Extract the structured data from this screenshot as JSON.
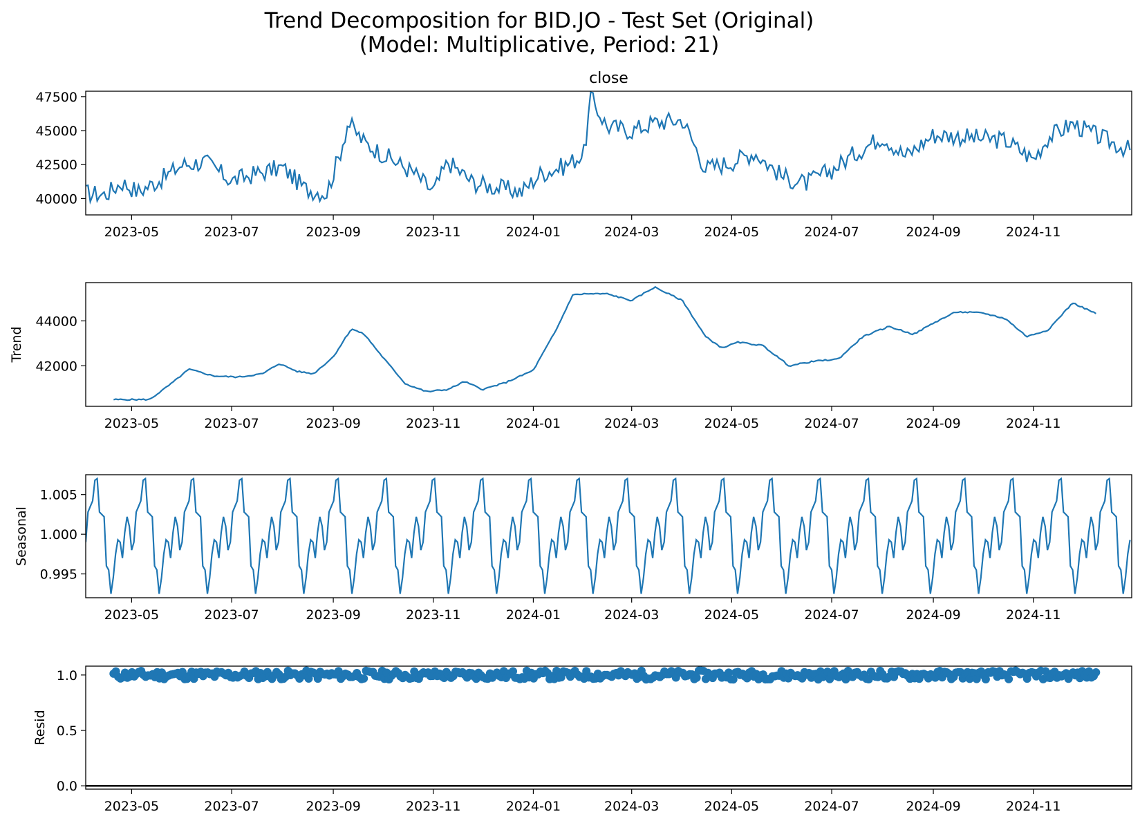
{
  "figure": {
    "title_line1": "Trend Decomposition for BID.JO - Test Set (Original)",
    "title_line2": "(Model: Multiplicative, Period: 21)"
  },
  "colors": {
    "series": "#1f77b4",
    "axis": "#000000",
    "zero_line": "#000000"
  },
  "chart_data": [
    {
      "type": "line",
      "title": "close",
      "ylabel": "",
      "xlim": [
        "2023-04-03",
        "2024-12-31"
      ],
      "ylim": [
        38800,
        47900
      ],
      "yticks": [
        40000,
        42500,
        45000,
        47500
      ],
      "ytick_labels": [
        "40000",
        "42500",
        "45000",
        "47500"
      ],
      "xticks": [
        "2023-05-01",
        "2023-07-01",
        "2023-09-01",
        "2023-11-01",
        "2024-01-01",
        "2024-03-01",
        "2024-05-01",
        "2024-07-01",
        "2024-09-01",
        "2024-11-01"
      ],
      "xtick_labels": [
        "2023-05",
        "2023-07",
        "2023-09",
        "2023-11",
        "2024-01",
        "2024-03",
        "2024-05",
        "2024-07",
        "2024-09",
        "2024-11"
      ],
      "grid": false,
      "series": [
        {
          "x": [
            "2023-04-03",
            "2023-04-15",
            "2023-04-25",
            "2023-05-05",
            "2023-05-20",
            "2023-06-01",
            "2023-06-15",
            "2023-07-01",
            "2023-07-15",
            "2023-08-01",
            "2023-08-15",
            "2023-08-28",
            "2023-09-05",
            "2023-09-10",
            "2023-09-20",
            "2023-10-05",
            "2023-10-20",
            "2023-11-01",
            "2023-11-10",
            "2023-11-25",
            "2023-12-10",
            "2023-12-25",
            "2024-01-05",
            "2024-01-20",
            "2024-02-01",
            "2024-02-05",
            "2024-02-15",
            "2024-03-01",
            "2024-03-15",
            "2024-04-01",
            "2024-04-15",
            "2024-05-01",
            "2024-05-15",
            "2024-06-01",
            "2024-06-15",
            "2024-07-01",
            "2024-07-15",
            "2024-08-01",
            "2024-08-15",
            "2024-09-01",
            "2024-09-15",
            "2024-10-01",
            "2024-10-15",
            "2024-11-01",
            "2024-11-10",
            "2024-11-25",
            "2024-12-10",
            "2024-12-31"
          ],
          "values": [
            40400,
            40300,
            41200,
            40500,
            41500,
            42500,
            42700,
            41300,
            41800,
            42300,
            40700,
            40400,
            43300,
            45600,
            44100,
            43000,
            41900,
            40500,
            42700,
            41200,
            40800,
            40500,
            41800,
            42400,
            43300,
            47400,
            45300,
            45000,
            45600,
            45800,
            42200,
            42700,
            43400,
            41600,
            41100,
            42100,
            43300,
            44600,
            43100,
            44700,
            44600,
            44400,
            44300,
            42900,
            44500,
            45500,
            44600,
            43500
          ]
        }
      ]
    },
    {
      "type": "line",
      "title": "",
      "ylabel": "Trend",
      "xlim": [
        "2023-04-03",
        "2024-12-31"
      ],
      "ylim": [
        40200,
        45700
      ],
      "yticks": [
        42000,
        44000
      ],
      "ytick_labels": [
        "42000",
        "44000"
      ],
      "xticks": [
        "2023-05-01",
        "2023-07-01",
        "2023-09-01",
        "2023-11-01",
        "2024-01-01",
        "2024-03-01",
        "2024-05-01",
        "2024-07-01",
        "2024-09-01",
        "2024-11-01"
      ],
      "xtick_labels": [
        "2023-05",
        "2023-07",
        "2023-09",
        "2023-11",
        "2024-01",
        "2024-03",
        "2024-05",
        "2024-07",
        "2024-09",
        "2024-11"
      ],
      "grid": false,
      "series": [
        {
          "x": [
            "2023-04-20",
            "2023-05-01",
            "2023-05-12",
            "2023-05-25",
            "2023-06-05",
            "2023-06-20",
            "2023-07-05",
            "2023-07-20",
            "2023-07-30",
            "2023-08-10",
            "2023-08-20",
            "2023-09-01",
            "2023-09-12",
            "2023-09-20",
            "2023-10-01",
            "2023-10-15",
            "2023-10-28",
            "2023-11-10",
            "2023-11-20",
            "2023-12-01",
            "2023-12-15",
            "2024-01-01",
            "2024-01-15",
            "2024-01-25",
            "2024-02-01",
            "2024-02-15",
            "2024-03-01",
            "2024-03-15",
            "2024-04-01",
            "2024-04-15",
            "2024-04-25",
            "2024-05-05",
            "2024-05-20",
            "2024-06-05",
            "2024-06-20",
            "2024-07-05",
            "2024-07-20",
            "2024-08-05",
            "2024-08-20",
            "2024-09-01",
            "2024-09-15",
            "2024-10-01",
            "2024-10-15",
            "2024-10-28",
            "2024-11-10",
            "2024-11-25",
            "2024-12-10"
          ],
          "values": [
            40500,
            40500,
            40500,
            41200,
            41850,
            41550,
            41500,
            41650,
            42100,
            41750,
            41650,
            42400,
            43650,
            43400,
            42400,
            41200,
            40850,
            40950,
            41300,
            40950,
            41250,
            41800,
            43600,
            45150,
            45200,
            45200,
            44900,
            45500,
            44900,
            43300,
            42800,
            43050,
            42900,
            42000,
            42200,
            42300,
            43300,
            43750,
            43400,
            43900,
            44400,
            44350,
            44100,
            43300,
            43600,
            44800,
            44300
          ]
        }
      ]
    },
    {
      "type": "line",
      "title": "",
      "ylabel": "Seasonal",
      "xlim": [
        "2023-04-03",
        "2024-12-31"
      ],
      "ylim": [
        0.992,
        1.0075
      ],
      "yticks": [
        0.995,
        1.0,
        1.005
      ],
      "ytick_labels": [
        "0.995",
        "1.000",
        "1.005"
      ],
      "xticks": [
        "2023-05-01",
        "2023-07-01",
        "2023-09-01",
        "2023-11-01",
        "2024-01-01",
        "2024-03-01",
        "2024-05-01",
        "2024-07-01",
        "2024-09-01",
        "2024-11-01"
      ],
      "xtick_labels": [
        "2023-05",
        "2023-07",
        "2023-09",
        "2023-11",
        "2024-01",
        "2024-03",
        "2024-05",
        "2024-07",
        "2024-09",
        "2024-11"
      ],
      "grid": false,
      "period": 21,
      "series": [
        {
          "values": [
            0.999,
            1.0028,
            1.0035,
            1.0042,
            1.0068,
            1.007,
            1.0028,
            1.0025,
            1.0022,
            0.996,
            0.9955,
            0.9925,
            0.9945,
            0.9975,
            0.9993,
            0.999,
            0.997,
            1.0002,
            1.0022,
            1.001,
            0.998
          ]
        }
      ]
    },
    {
      "type": "scatter",
      "title": "",
      "ylabel": "Resid",
      "xlim": [
        "2023-04-03",
        "2024-12-31"
      ],
      "ylim": [
        -0.03,
        1.08
      ],
      "yticks": [
        0.0,
        0.5,
        1.0
      ],
      "ytick_labels": [
        "0.0",
        "0.5",
        "1.0"
      ],
      "xticks": [
        "2023-05-01",
        "2023-07-01",
        "2023-09-01",
        "2023-11-01",
        "2024-01-01",
        "2024-03-01",
        "2024-05-01",
        "2024-07-01",
        "2024-09-01",
        "2024-11-01"
      ],
      "xtick_labels": [
        "2023-05",
        "2023-07",
        "2023-09",
        "2023-11",
        "2024-01",
        "2024-03",
        "2024-05",
        "2024-07",
        "2024-09",
        "2024-11"
      ],
      "grid": false,
      "baseline": 0.0,
      "x_range": [
        "2023-04-20",
        "2024-12-10"
      ],
      "value_range": [
        0.95,
        1.05
      ],
      "typical_value": 1.0
    }
  ]
}
